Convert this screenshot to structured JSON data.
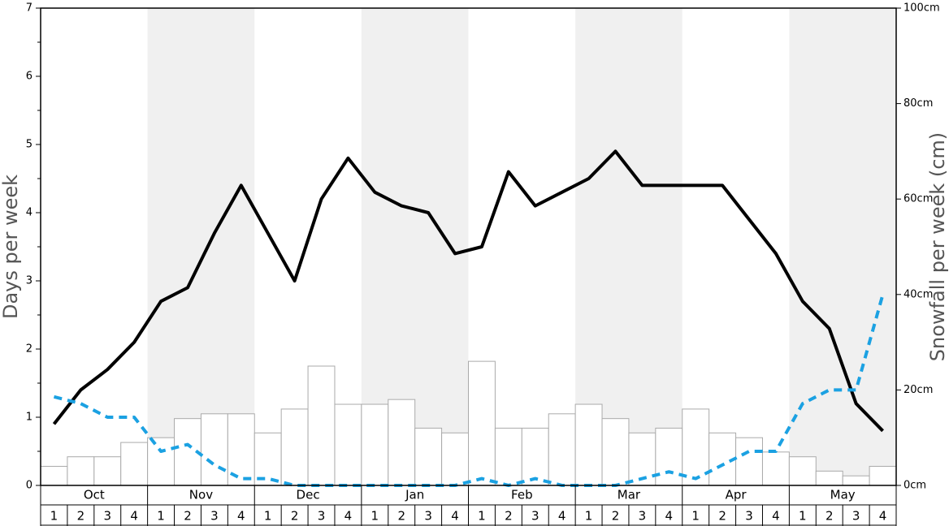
{
  "chart_data": {
    "type": "bar-line",
    "y_label": "Days per week",
    "y2_label": "Snowfall per week (cm)",
    "months": [
      "Oct",
      "Nov",
      "Dec",
      "Jan",
      "Feb",
      "Mar",
      "Apr",
      "May"
    ],
    "categories": [
      "1",
      "2",
      "3",
      "4",
      "1",
      "2",
      "3",
      "4",
      "1",
      "2",
      "3",
      "4",
      "1",
      "2",
      "3",
      "4",
      "1",
      "2",
      "3",
      "4",
      "1",
      "2",
      "3",
      "4",
      "1",
      "2",
      "3",
      "4",
      "1",
      "2",
      "3",
      "4"
    ],
    "ylim": [
      0,
      7
    ],
    "yticks": [
      0,
      1,
      2,
      3,
      4,
      5,
      6,
      7
    ],
    "y2lim": [
      0,
      100
    ],
    "y2ticks": [
      {
        "value": 0,
        "label": "0cm"
      },
      {
        "value": 20,
        "label": "20cm"
      },
      {
        "value": 40,
        "label": "40cm"
      },
      {
        "value": 60,
        "label": "60cm"
      },
      {
        "value": 80,
        "label": "80cm"
      },
      {
        "value": 100,
        "label": "100cm"
      }
    ],
    "band_color": "#f0f0f0",
    "series": [
      {
        "type": "bar",
        "axis": "y2",
        "color": "#ffffff",
        "edge_color": "#aaaaaa",
        "values": [
          4,
          6,
          6,
          9,
          10,
          14,
          15,
          15,
          11,
          16,
          25,
          17,
          17,
          18,
          12,
          11,
          26,
          12,
          12,
          15,
          17,
          14,
          11,
          12,
          16,
          11,
          10,
          7,
          6,
          3,
          2,
          4
        ]
      },
      {
        "type": "line",
        "color": "#000000",
        "dashed": false,
        "values": [
          0.9,
          1.4,
          1.7,
          2.1,
          2.7,
          2.9,
          3.7,
          4.4,
          3.7,
          3.0,
          4.2,
          4.8,
          4.3,
          4.1,
          4.0,
          3.4,
          3.5,
          4.6,
          4.1,
          4.3,
          4.5,
          4.9,
          4.4,
          4.4,
          4.4,
          4.4,
          3.9,
          3.4,
          2.7,
          2.3,
          1.2,
          0.8
        ]
      },
      {
        "type": "line",
        "color": "#1ba1e2",
        "dashed": true,
        "values": [
          1.3,
          1.2,
          1.0,
          1.0,
          0.5,
          0.6,
          0.3,
          0.1,
          0.1,
          0,
          0,
          0,
          0,
          0,
          0,
          0,
          0.1,
          0,
          0.1,
          0,
          0,
          0,
          0.1,
          0.2,
          0.1,
          0.3,
          0.5,
          0.5,
          1.2,
          1.4,
          1.4,
          2.8
        ]
      }
    ]
  }
}
